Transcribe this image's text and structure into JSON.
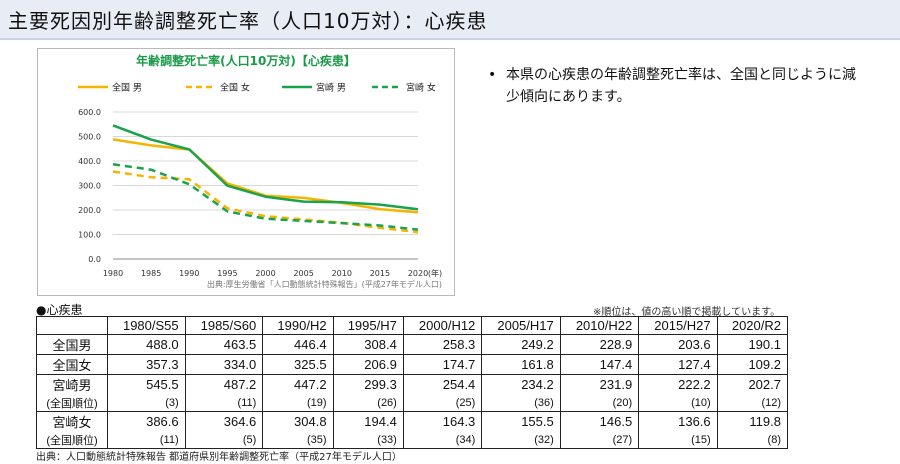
{
  "page_title": "主要死因別年齢調整死亡率（人口10万対）：心疾患",
  "bullet_text": "本県の心疾患の年齢調整死亡率は、全国と同じように減少傾向にあります。",
  "bullet_mark": "•",
  "chart_data": {
    "type": "line",
    "title": "年齢調整死亡率(人口10万対)【心疾患】",
    "x": [
      "1980",
      "1985",
      "1990",
      "1995",
      "2000",
      "2005",
      "2010",
      "2015",
      "2020"
    ],
    "x_unit": "(年)",
    "ylim": [
      0,
      600
    ],
    "y_ticks": [
      "0.0",
      "100.0",
      "200.0",
      "300.0",
      "400.0",
      "500.0",
      "600.0"
    ],
    "grid": true,
    "source": "出典:厚生労働省「人口動態統計特殊報告」(平成27年モデル人口)",
    "series": [
      {
        "name": "全国 男",
        "color": "#f5b400",
        "dash": false,
        "values": [
          488.0,
          463.5,
          446.4,
          308.4,
          258.3,
          249.2,
          228.9,
          203.6,
          190.1
        ]
      },
      {
        "name": "全国 女",
        "color": "#f5b400",
        "dash": true,
        "values": [
          357.3,
          334.0,
          325.5,
          206.9,
          174.7,
          161.8,
          147.4,
          127.4,
          109.2
        ]
      },
      {
        "name": "宮崎 男",
        "color": "#1aa34a",
        "dash": false,
        "values": [
          545.5,
          487.2,
          447.2,
          299.3,
          254.4,
          234.2,
          231.9,
          222.2,
          202.7
        ]
      },
      {
        "name": "宮崎 女",
        "color": "#1aa34a",
        "dash": true,
        "values": [
          386.6,
          364.6,
          304.8,
          194.4,
          164.3,
          155.5,
          146.5,
          136.6,
          119.8
        ]
      }
    ]
  },
  "table": {
    "section_label": "●心疾患",
    "note": "※順位は、値の高い順で掲載しています。",
    "headers": [
      "1980/S55",
      "1985/S60",
      "1990/H2",
      "1995/H7",
      "2000/H12",
      "2005/H17",
      "2010/H22",
      "2015/H27",
      "2020/R2"
    ],
    "rows": [
      {
        "label": "全国男",
        "cells": [
          "488.0",
          "463.5",
          "446.4",
          "308.4",
          "258.3",
          "249.2",
          "228.9",
          "203.6",
          "190.1"
        ]
      },
      {
        "label": "全国女",
        "cells": [
          "357.3",
          "334.0",
          "325.5",
          "206.9",
          "174.7",
          "161.8",
          "147.4",
          "127.4",
          "109.2"
        ]
      },
      {
        "label": "宮崎男",
        "cells": [
          "545.5",
          "487.2",
          "447.2",
          "299.3",
          "254.4",
          "234.2",
          "231.9",
          "222.2",
          "202.7"
        ],
        "sub_label": "(全国順位)",
        "sub_cells": [
          "(3)",
          "(11)",
          "(19)",
          "(26)",
          "(25)",
          "(36)",
          "(20)",
          "(10)",
          "(12)"
        ]
      },
      {
        "label": "宮崎女",
        "cells": [
          "386.6",
          "364.6",
          "304.8",
          "194.4",
          "164.3",
          "155.5",
          "146.5",
          "136.6",
          "119.8"
        ],
        "sub_label": "(全国順位)",
        "sub_cells": [
          "(11)",
          "(5)",
          "(35)",
          "(33)",
          "(34)",
          "(32)",
          "(27)",
          "(15)",
          "(8)"
        ]
      }
    ]
  },
  "source_text": "出典：人口動態統計特殊報告 都道府県別年齢調整死亡率（平成27年モデル人口）"
}
